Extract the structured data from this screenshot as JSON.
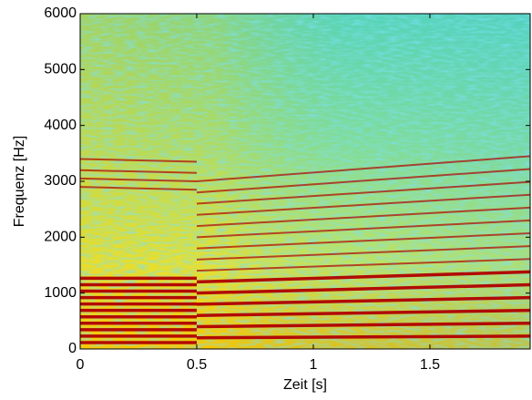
{
  "chart_data": {
    "type": "spectrogram",
    "x_label": "Zeit [s]",
    "y_label": "Frequenz [Hz]",
    "xlim": [
      0,
      1.93
    ],
    "ylim": [
      0,
      6000
    ],
    "xticks": [
      0,
      0.5,
      1,
      1.5
    ],
    "yticks": [
      0,
      1000,
      2000,
      3000,
      4000,
      5000,
      6000
    ],
    "ridges": {
      "color": "#b00000",
      "lines": [
        {
          "x": [
            0,
            0.5
          ],
          "y": [
            115,
            115
          ]
        },
        {
          "x": [
            0,
            0.5
          ],
          "y": [
            230,
            230
          ]
        },
        {
          "x": [
            0,
            0.5
          ],
          "y": [
            345,
            345
          ]
        },
        {
          "x": [
            0,
            0.5
          ],
          "y": [
            460,
            460
          ]
        },
        {
          "x": [
            0,
            0.5
          ],
          "y": [
            575,
            575
          ]
        },
        {
          "x": [
            0,
            0.5
          ],
          "y": [
            690,
            690
          ]
        },
        {
          "x": [
            0,
            0.5
          ],
          "y": [
            805,
            805
          ]
        },
        {
          "x": [
            0,
            0.5
          ],
          "y": [
            920,
            920
          ]
        },
        {
          "x": [
            0,
            0.5
          ],
          "y": [
            1035,
            1035
          ]
        },
        {
          "x": [
            0,
            0.5
          ],
          "y": [
            1150,
            1150
          ]
        },
        {
          "x": [
            0,
            0.5
          ],
          "y": [
            1265,
            1265
          ]
        },
        {
          "x": [
            0,
            0.5
          ],
          "y": [
            2900,
            2850
          ]
        },
        {
          "x": [
            0,
            0.5
          ],
          "y": [
            3050,
            3000
          ]
        },
        {
          "x": [
            0,
            0.5
          ],
          "y": [
            3200,
            3150
          ]
        },
        {
          "x": [
            0,
            0.5
          ],
          "y": [
            3400,
            3350
          ]
        },
        {
          "x": [
            0.5,
            1.93
          ],
          "y": [
            200,
            230
          ]
        },
        {
          "x": [
            0.5,
            1.93
          ],
          "y": [
            400,
            460
          ]
        },
        {
          "x": [
            0.5,
            1.93
          ],
          "y": [
            600,
            690
          ]
        },
        {
          "x": [
            0.5,
            1.93
          ],
          "y": [
            800,
            920
          ]
        },
        {
          "x": [
            0.5,
            1.93
          ],
          "y": [
            1000,
            1150
          ]
        },
        {
          "x": [
            0.5,
            1.93
          ],
          "y": [
            1200,
            1380
          ]
        },
        {
          "x": [
            0.5,
            1.93
          ],
          "y": [
            1400,
            1610
          ]
        },
        {
          "x": [
            0.5,
            1.93
          ],
          "y": [
            1600,
            1840
          ]
        },
        {
          "x": [
            0.5,
            1.93
          ],
          "y": [
            1800,
            2070
          ]
        },
        {
          "x": [
            0.5,
            1.93
          ],
          "y": [
            2000,
            2300
          ]
        },
        {
          "x": [
            0.5,
            1.93
          ],
          "y": [
            2200,
            2530
          ]
        },
        {
          "x": [
            0.5,
            1.93
          ],
          "y": [
            2400,
            2760
          ]
        },
        {
          "x": [
            0.5,
            1.93
          ],
          "y": [
            2600,
            2990
          ]
        },
        {
          "x": [
            0.5,
            1.93
          ],
          "y": [
            2800,
            3220
          ]
        },
        {
          "x": [
            0.5,
            1.93
          ],
          "y": [
            3000,
            3450
          ]
        }
      ]
    }
  }
}
